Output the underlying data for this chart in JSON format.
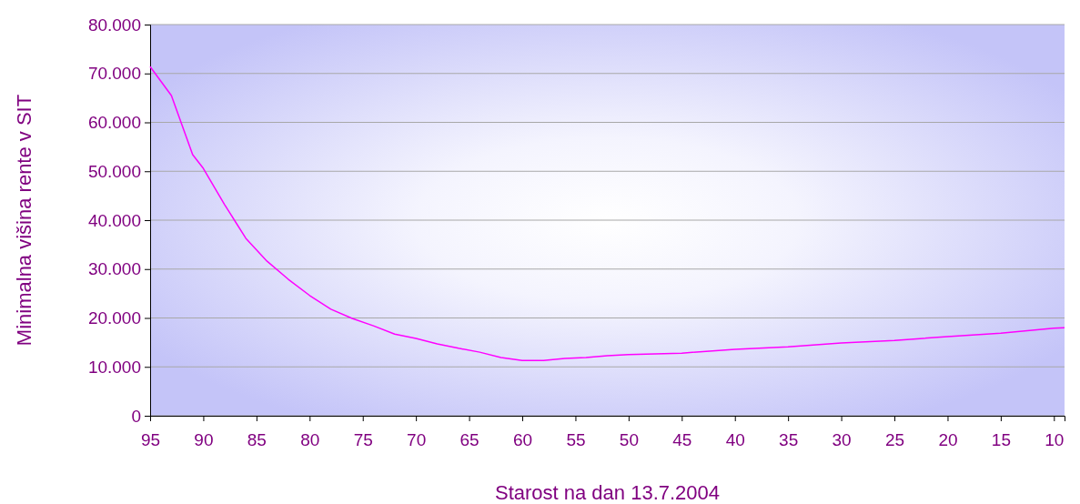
{
  "chart_data": {
    "type": "line",
    "xlabel": "Starost na dan 13.7.2004",
    "ylabel": "Minimalna višina rente v SIT",
    "x": [
      95,
      93,
      91,
      90,
      88,
      86,
      84,
      82,
      80,
      78,
      76,
      74,
      72,
      70,
      68,
      66,
      64,
      62,
      60,
      58,
      56,
      54,
      52,
      50,
      45,
      40,
      35,
      30,
      25,
      20,
      15,
      10,
      9
    ],
    "series": [
      {
        "color": "#ff00ff",
        "values": [
          71400,
          65500,
          53400,
          50600,
          43200,
          36300,
          31600,
          27900,
          24600,
          21800,
          19900,
          18400,
          16700,
          15800,
          14700,
          13800,
          13000,
          11900,
          11300,
          11300,
          11700,
          11900,
          12300,
          12500,
          12800,
          13600,
          14100,
          14900,
          15400,
          16200,
          16900,
          17900,
          18000
        ]
      }
    ],
    "xlim": [
      95,
      9
    ],
    "xticks": [
      95,
      90,
      85,
      80,
      75,
      70,
      65,
      60,
      55,
      50,
      45,
      40,
      35,
      30,
      25,
      20,
      15,
      10
    ],
    "ylim": [
      0,
      80000
    ],
    "yticks": [
      {
        "value": 0,
        "label": "0"
      },
      {
        "value": 10000,
        "label": "10.000"
      },
      {
        "value": 20000,
        "label": "20.000"
      },
      {
        "value": 30000,
        "label": "30.000"
      },
      {
        "value": 40000,
        "label": "40.000"
      },
      {
        "value": 50000,
        "label": "50.000"
      },
      {
        "value": 60000,
        "label": "60.000"
      },
      {
        "value": 70000,
        "label": "70.000"
      },
      {
        "value": 80000,
        "label": "80.000"
      }
    ],
    "grid": "y",
    "marker": "none",
    "line_style": "solid"
  }
}
